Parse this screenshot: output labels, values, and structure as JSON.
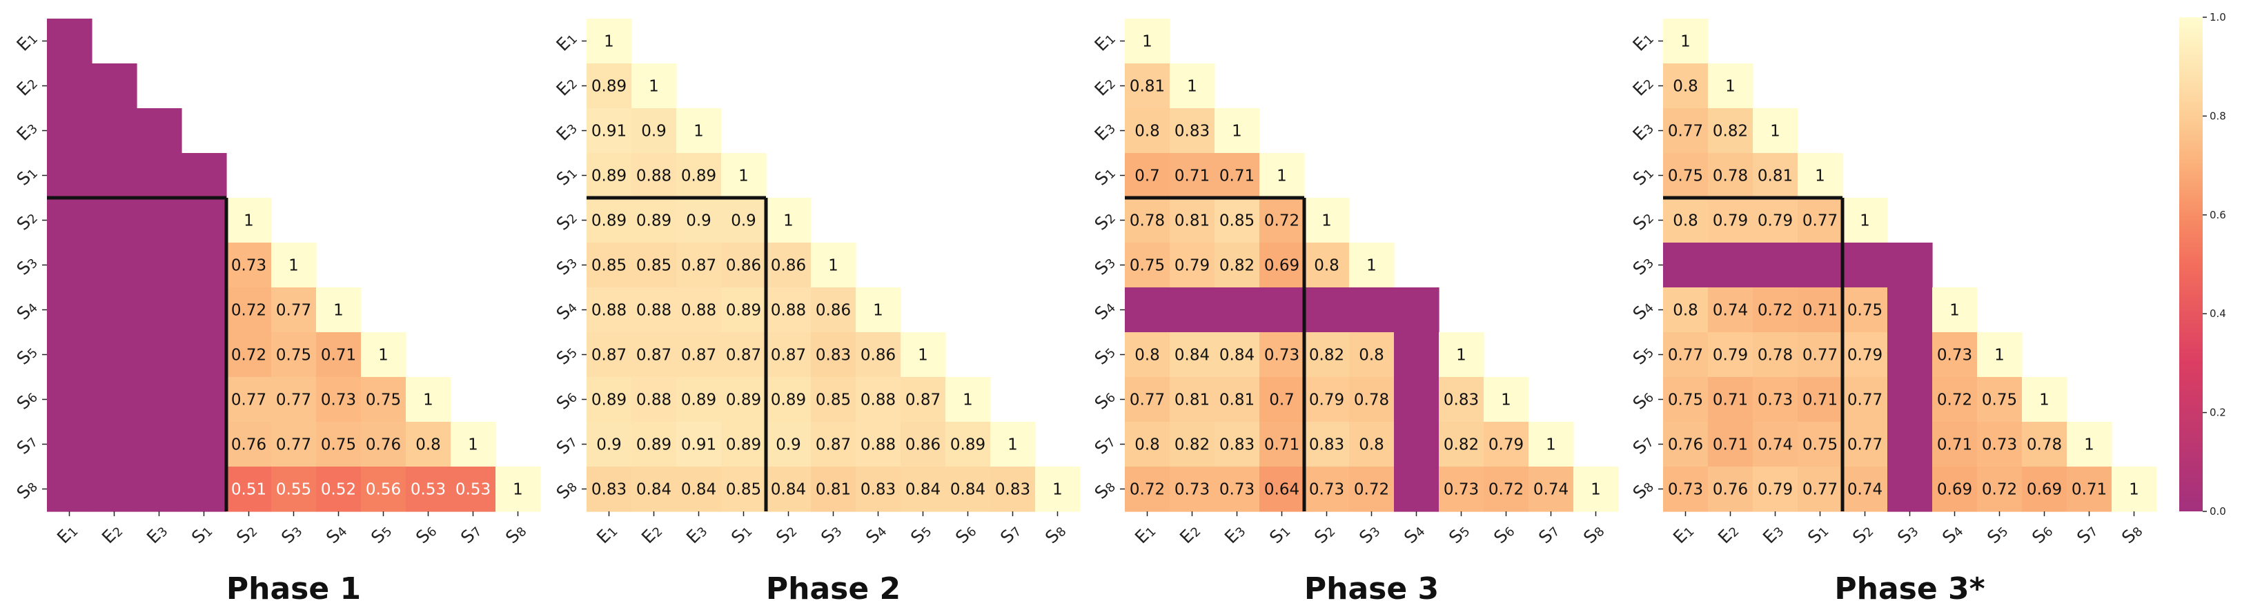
{
  "chart_data": [
    {
      "type": "heatmap",
      "title": "Phase 1",
      "labels": [
        "E1",
        "E2",
        "E3",
        "S1",
        "S2",
        "S3",
        "S4",
        "S5",
        "S6",
        "S7",
        "S8"
      ],
      "values": [
        [
          null
        ],
        [
          null,
          null
        ],
        [
          null,
          null,
          null
        ],
        [
          null,
          null,
          null,
          null
        ],
        [
          null,
          null,
          null,
          null,
          1
        ],
        [
          null,
          null,
          null,
          null,
          0.73,
          1
        ],
        [
          null,
          null,
          null,
          null,
          0.72,
          0.77,
          1
        ],
        [
          null,
          null,
          null,
          null,
          0.72,
          0.75,
          0.71,
          1
        ],
        [
          null,
          null,
          null,
          null,
          0.77,
          0.77,
          0.73,
          0.75,
          1
        ],
        [
          null,
          null,
          null,
          null,
          0.76,
          0.77,
          0.75,
          0.76,
          0.8,
          1
        ],
        [
          null,
          null,
          null,
          null,
          0.51,
          0.55,
          0.52,
          0.56,
          0.53,
          0.53,
          1
        ]
      ],
      "masked_labels": [
        "E1",
        "E2",
        "E3",
        "S1"
      ],
      "separator_after_index": 3
    },
    {
      "type": "heatmap",
      "title": "Phase 2",
      "labels": [
        "E1",
        "E2",
        "E3",
        "S1",
        "S2",
        "S3",
        "S4",
        "S5",
        "S6",
        "S7",
        "S8"
      ],
      "values": [
        [
          1
        ],
        [
          0.89,
          1
        ],
        [
          0.91,
          0.9,
          1
        ],
        [
          0.89,
          0.88,
          0.89,
          1
        ],
        [
          0.89,
          0.89,
          0.9,
          0.9,
          1
        ],
        [
          0.85,
          0.85,
          0.87,
          0.86,
          0.86,
          1
        ],
        [
          0.88,
          0.88,
          0.88,
          0.89,
          0.88,
          0.86,
          1
        ],
        [
          0.87,
          0.87,
          0.87,
          0.87,
          0.87,
          0.83,
          0.86,
          1
        ],
        [
          0.89,
          0.88,
          0.89,
          0.89,
          0.89,
          0.85,
          0.88,
          0.87,
          1
        ],
        [
          0.9,
          0.89,
          0.91,
          0.89,
          0.9,
          0.87,
          0.88,
          0.86,
          0.89,
          1
        ],
        [
          0.83,
          0.84,
          0.84,
          0.85,
          0.84,
          0.81,
          0.83,
          0.84,
          0.84,
          0.83,
          1
        ]
      ],
      "masked_labels": [],
      "separator_after_index": 3
    },
    {
      "type": "heatmap",
      "title": "Phase 3",
      "labels": [
        "E1",
        "E2",
        "E3",
        "S1",
        "S2",
        "S3",
        "S4",
        "S5",
        "S6",
        "S7",
        "S8"
      ],
      "values": [
        [
          1
        ],
        [
          0.81,
          1
        ],
        [
          0.8,
          0.83,
          1
        ],
        [
          0.7,
          0.71,
          0.71,
          1
        ],
        [
          0.78,
          0.81,
          0.85,
          0.72,
          1
        ],
        [
          0.75,
          0.79,
          0.82,
          0.69,
          0.8,
          1
        ],
        [
          null,
          null,
          null,
          null,
          null,
          null,
          null
        ],
        [
          0.8,
          0.84,
          0.84,
          0.73,
          0.82,
          0.8,
          null,
          1
        ],
        [
          0.77,
          0.81,
          0.81,
          0.7,
          0.79,
          0.78,
          null,
          0.83,
          1
        ],
        [
          0.8,
          0.82,
          0.83,
          0.71,
          0.83,
          0.8,
          null,
          0.82,
          0.79,
          1
        ],
        [
          0.72,
          0.73,
          0.73,
          0.64,
          0.73,
          0.72,
          null,
          0.73,
          0.72,
          0.74,
          1
        ]
      ],
      "masked_labels": [
        "S4"
      ],
      "separator_after_index": 3
    },
    {
      "type": "heatmap",
      "title": "Phase 3*",
      "labels": [
        "E1",
        "E2",
        "E3",
        "S1",
        "S2",
        "S3",
        "S4",
        "S5",
        "S6",
        "S7",
        "S8"
      ],
      "values": [
        [
          1
        ],
        [
          0.8,
          1
        ],
        [
          0.77,
          0.82,
          1
        ],
        [
          0.75,
          0.78,
          0.81,
          1
        ],
        [
          0.8,
          0.79,
          0.79,
          0.77,
          1
        ],
        [
          null,
          null,
          null,
          null,
          null,
          null
        ],
        [
          0.8,
          0.74,
          0.72,
          0.71,
          0.75,
          null,
          1
        ],
        [
          0.77,
          0.79,
          0.78,
          0.77,
          0.79,
          null,
          0.73,
          1
        ],
        [
          0.75,
          0.71,
          0.73,
          0.71,
          0.77,
          null,
          0.72,
          0.75,
          1
        ],
        [
          0.76,
          0.71,
          0.74,
          0.75,
          0.77,
          null,
          0.71,
          0.73,
          0.78,
          1
        ],
        [
          0.73,
          0.76,
          0.79,
          0.77,
          0.74,
          null,
          0.69,
          0.72,
          0.69,
          0.71,
          1
        ]
      ],
      "masked_labels": [
        "S3"
      ],
      "separator_after_index": 3
    }
  ],
  "colorbar": {
    "ticks": [
      "0.0",
      "0.2",
      "0.4",
      "0.6",
      "0.8",
      "1.0"
    ],
    "range": [
      0,
      1
    ],
    "colormap": "magma-like",
    "mask_color": "#A2317D"
  }
}
